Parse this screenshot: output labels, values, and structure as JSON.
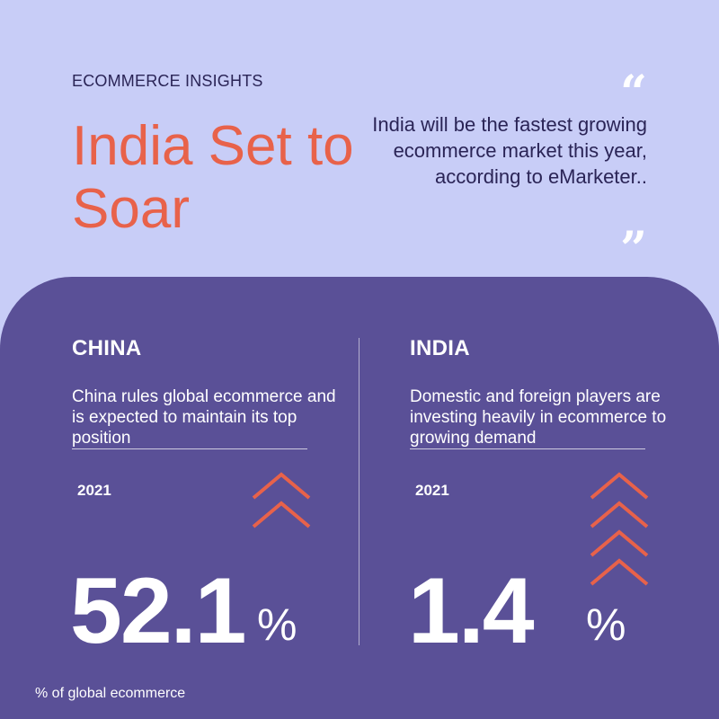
{
  "header": {
    "eyebrow": "ECOMMERCE INSIGHTS",
    "headline": "India Set to Soar",
    "quote_open": "“",
    "quote_text": "India will be the fastest growing ecommerce market this year, according to eMarketer..",
    "quote_close": "”"
  },
  "columns": [
    {
      "title": "CHINA",
      "description": "China rules global ecommerce and is expected to maintain its top position",
      "year": "2021",
      "value": "52.1",
      "unit": "%",
      "chevron_count": 2
    },
    {
      "title": "INDIA",
      "description": "Domestic and foreign players are investing heavily in ecommerce to growing demand",
      "year": "2021",
      "value": "1.4",
      "unit": "%",
      "chevron_count": 4
    }
  ],
  "footnote": "% of global ecommerce",
  "colors": {
    "background": "#c8cdf7",
    "panel": "#5a5097",
    "accent": "#e8624a",
    "dark_text": "#2a2456",
    "light_text": "#ffffff"
  }
}
